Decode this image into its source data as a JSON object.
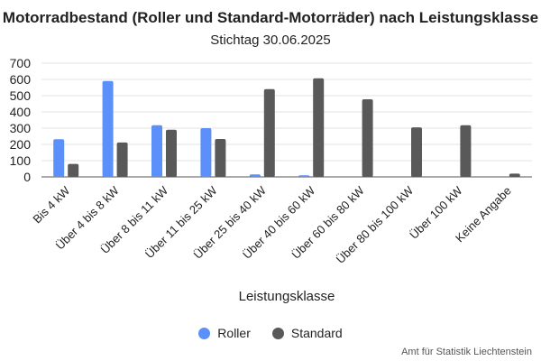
{
  "title": "Motorradbestand (Roller und Standard-Motorräder) nach Leistungsklasse",
  "subtitle": "Stichtag 30.06.2025",
  "credit": "Amt für Statistik Liechtenstein",
  "chart_data": {
    "type": "bar",
    "title": "Motorradbestand (Roller und Standard-Motorräder) nach Leistungsklasse",
    "subtitle": "Stichtag 30.06.2025",
    "xlabel": "Leistungsklasse",
    "ylabel": "",
    "ylim": [
      0,
      700
    ],
    "yticks": [
      0,
      100,
      200,
      300,
      400,
      500,
      600,
      700
    ],
    "grid": true,
    "legend_position": "bottom",
    "categories": [
      "Bis 4 kW",
      "Über 4 bis 8 kW",
      "Über 8 bis 11 kW",
      "Über 11 bis 25 kW",
      "Über 25 bis 40 kW",
      "Über 40 bis 60 kW",
      "Über 60 bis 80 kW",
      "Über 80 bis 100 kW",
      "Über 100 kW",
      "Keine Angabe"
    ],
    "series": [
      {
        "name": "Roller",
        "color": "#5b8ff9",
        "values": [
          232,
          590,
          318,
          300,
          15,
          10,
          0,
          0,
          0,
          0
        ]
      },
      {
        "name": "Standard",
        "color": "#595959",
        "values": [
          80,
          212,
          290,
          233,
          540,
          607,
          478,
          305,
          318,
          20
        ]
      }
    ]
  }
}
